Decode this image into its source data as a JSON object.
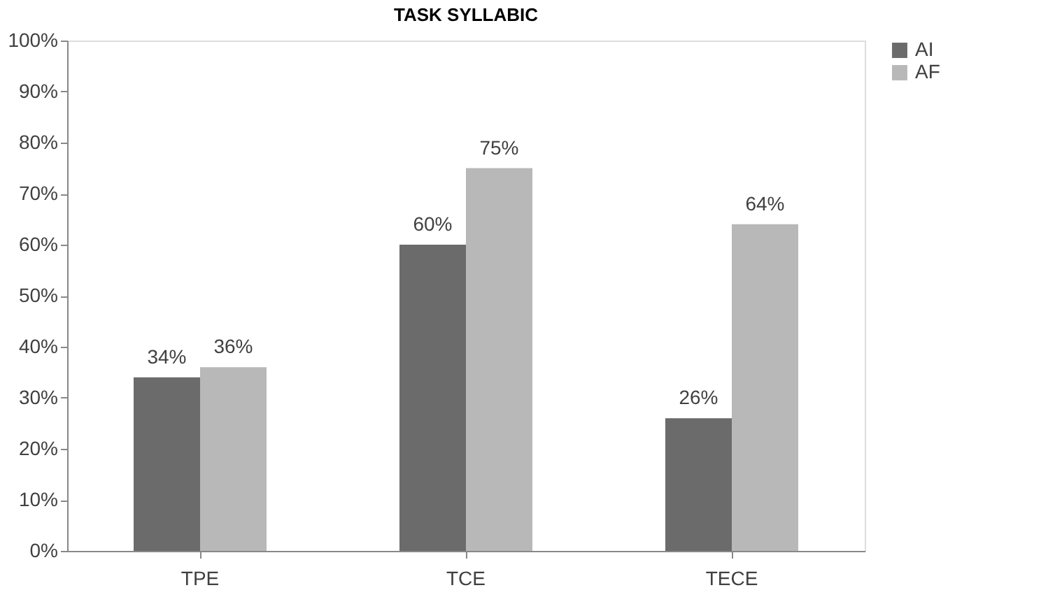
{
  "chart_data": {
    "type": "bar",
    "title": "TASK SYLLABIC",
    "categories": [
      "TPE",
      "TCE",
      "TECE"
    ],
    "series": [
      {
        "name": "AI",
        "color": "#6b6b6b",
        "values": [
          34,
          60,
          26
        ],
        "value_labels": [
          "34%",
          "60%",
          "26%"
        ]
      },
      {
        "name": "AF",
        "color": "#b8b8b8",
        "values": [
          36,
          75,
          64
        ],
        "value_labels": [
          "36%",
          "75%",
          "64%"
        ]
      }
    ],
    "ylim": [
      0,
      100
    ],
    "yticks": [
      {
        "value": 0,
        "label": "0%"
      },
      {
        "value": 10,
        "label": "10%"
      },
      {
        "value": 20,
        "label": "20%"
      },
      {
        "value": 30,
        "label": "30%"
      },
      {
        "value": 40,
        "label": "40%"
      },
      {
        "value": 50,
        "label": "50%"
      },
      {
        "value": 60,
        "label": "60%"
      },
      {
        "value": 70,
        "label": "70%"
      },
      {
        "value": 80,
        "label": "80%"
      },
      {
        "value": 90,
        "label": "90%"
      },
      {
        "value": 100,
        "label": "100%"
      }
    ],
    "grid": false,
    "legend": "right"
  }
}
